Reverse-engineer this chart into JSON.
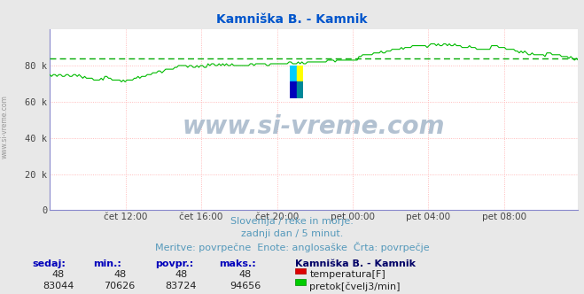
{
  "title": "Kamniška B. - Kamnik",
  "title_color": "#0055cc",
  "bg_color": "#e8e8e8",
  "plot_bg_color": "#ffffff",
  "grid_color": "#ffaaaa",
  "avg_line_color": "#00aa00",
  "avg_value": 83724,
  "ylim": [
    0,
    100000
  ],
  "yticks": [
    0,
    20000,
    40000,
    60000,
    80000
  ],
  "ytick_labels": [
    "0",
    "20 k",
    "40 k",
    "60 k",
    "80 k"
  ],
  "xtick_labels": [
    "čet 12:00",
    "čet 16:00",
    "čet 20:00",
    "pet 00:00",
    "pet 04:00",
    "pet 08:00"
  ],
  "line_color": "#00bb00",
  "line_color_red": "#cc0000",
  "watermark": "www.si-vreme.com",
  "watermark_color": "#aabbcc",
  "sub_text1": "Slovenija / reke in morje.",
  "sub_text2": "zadnji dan / 5 minut.",
  "sub_text3": "Meritve: povrpečne  Enote: anglosaške  Črta: povrpečje",
  "sub_text_color": "#5599bb",
  "table_headers": [
    "sedaj:",
    "min.:",
    "povpr.:",
    "maks.:"
  ],
  "table_row1": [
    "48",
    "48",
    "48",
    "48"
  ],
  "table_row2": [
    "83044",
    "70626",
    "83724",
    "94656"
  ],
  "station_name": "Kamniška B. - Kamnik",
  "label1": "temperatura[F]",
  "label2": "pretok[čvelj3/min]",
  "n_points": 288,
  "logo_colors": [
    "#00ccff",
    "#ffff00",
    "#0000bb",
    "#008899"
  ],
  "ylabel_rot": "www.si-vreme.com",
  "spine_color": "#8888cc",
  "axis_arrow_color": "#cc0000"
}
